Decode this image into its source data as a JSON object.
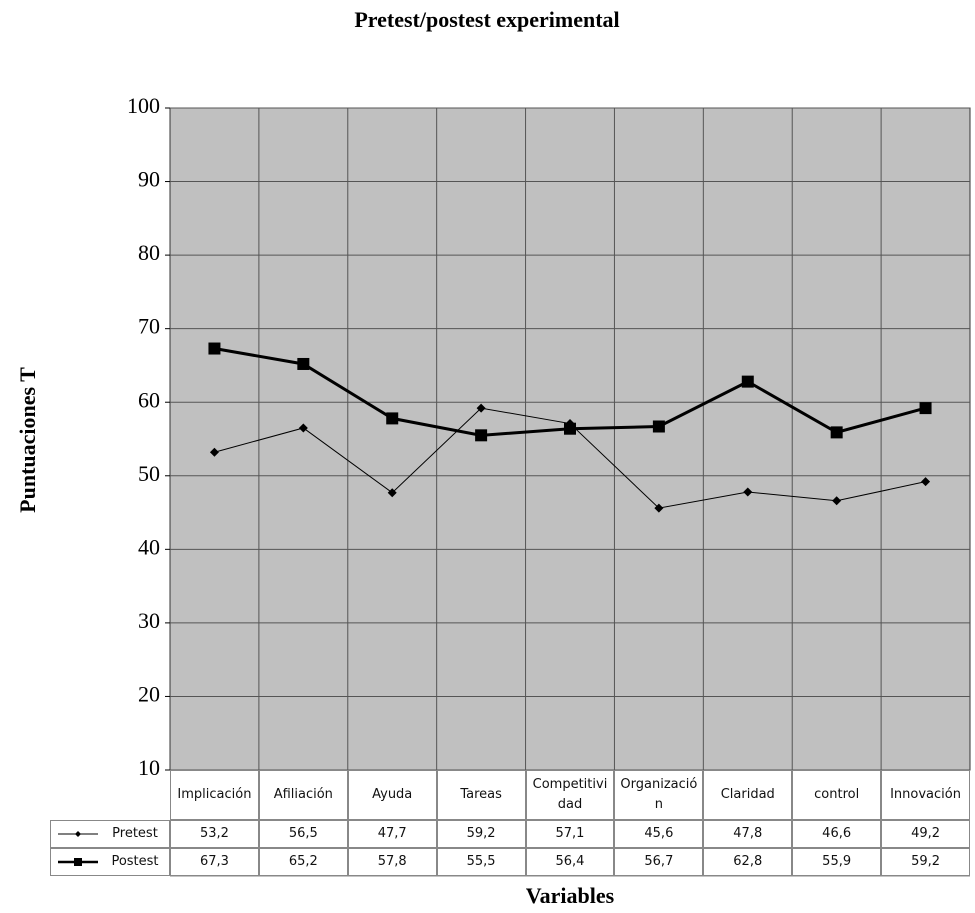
{
  "chart_data": {
    "type": "line",
    "title": "Pretest/postest experimental",
    "y_label": "Puntuaciones T",
    "x_label": "Variables",
    "categories": [
      "Implicación",
      "Afiliación",
      "Ayuda",
      "Tareas",
      "Competitividad",
      "Organización",
      "Claridad",
      "control",
      "Innovación"
    ],
    "series": [
      {
        "name": "Pretest",
        "color": "#000000",
        "marker": "diamond",
        "values": [
          53.2,
          56.5,
          47.7,
          59.2,
          57.1,
          45.6,
          47.8,
          46.6,
          49.2
        ],
        "value_labels": [
          "53,2",
          "56,5",
          "47,7",
          "59,2",
          "57,1",
          "45,6",
          "47,8",
          "46,6",
          "49,2"
        ]
      },
      {
        "name": "Postest",
        "color": "#000000",
        "marker": "square",
        "values": [
          67.3,
          65.2,
          57.8,
          55.5,
          56.4,
          56.7,
          62.8,
          55.9,
          59.2
        ],
        "value_labels": [
          "67,3",
          "65,2",
          "57,8",
          "55,5",
          "56,4",
          "56,7",
          "62,8",
          "55,9",
          "59,2"
        ]
      }
    ],
    "ylim": [
      10,
      100
    ],
    "yticks": [
      10,
      20,
      30,
      40,
      50,
      60,
      70,
      80,
      90,
      100
    ],
    "grid": true
  }
}
